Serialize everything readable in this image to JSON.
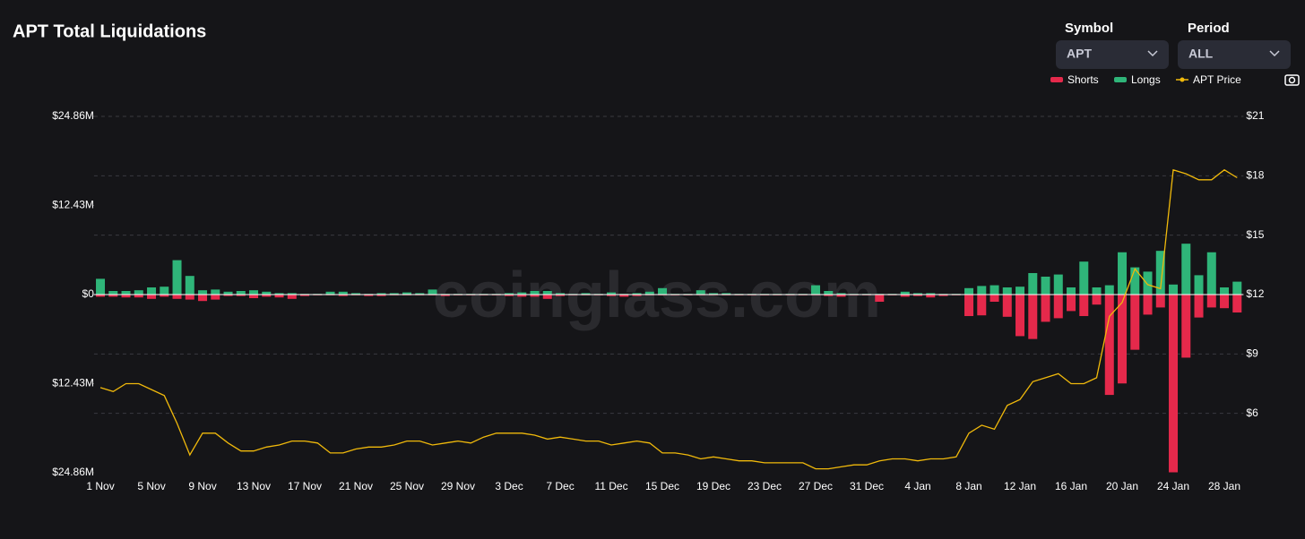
{
  "header": {
    "title": "APT Total Liquidations"
  },
  "controls": {
    "symbol_label": "Symbol",
    "symbol": "APT",
    "period_label": "Period",
    "period": "ALL"
  },
  "chart_data": {
    "type": "bar",
    "watermark": "coinglass.com",
    "categories": [
      "1 Nov",
      null,
      null,
      null,
      "5 Nov",
      null,
      null,
      null,
      "9 Nov",
      null,
      null,
      null,
      "13 Nov",
      null,
      null,
      null,
      "17 Nov",
      null,
      null,
      null,
      "21 Nov",
      null,
      null,
      null,
      "25 Nov",
      null,
      null,
      null,
      "29 Nov",
      null,
      null,
      null,
      "3 Dec",
      null,
      null,
      null,
      "7 Dec",
      null,
      null,
      null,
      "11 Dec",
      null,
      null,
      null,
      "15 Dec",
      null,
      null,
      null,
      "19 Dec",
      null,
      null,
      null,
      "23 Dec",
      null,
      null,
      null,
      "27 Dec",
      null,
      null,
      null,
      "31 Dec",
      null,
      null,
      null,
      "4 Jan",
      null,
      null,
      null,
      "8 Jan",
      null,
      null,
      null,
      "12 Jan",
      null,
      null,
      null,
      "16 Jan",
      null,
      null,
      null,
      "20 Jan",
      null,
      null,
      null,
      "24 Jan",
      null,
      null,
      null,
      "28 Jan",
      null
    ],
    "series": [
      {
        "name": "Shorts",
        "color": "#e5294b",
        "values": [
          -0.3,
          -0.3,
          -0.4,
          -0.4,
          -0.6,
          -0.3,
          -0.6,
          -0.7,
          -0.9,
          -0.7,
          -0.2,
          -0.2,
          -0.5,
          -0.3,
          -0.4,
          -0.6,
          -0.2,
          -0.1,
          -0.1,
          -0.2,
          -0.1,
          -0.2,
          -0.2,
          -0.1,
          -0.1,
          -0.1,
          -0.1,
          -0.2,
          -0.1,
          -0.1,
          -0.1,
          -0.1,
          -0.2,
          -0.3,
          -0.3,
          -0.6,
          -0.2,
          -0.1,
          -0.1,
          -0.1,
          -0.2,
          -0.3,
          -0.2,
          -0.1,
          -0.1,
          -0.1,
          -0.1,
          -0.1,
          -0.1,
          -0.1,
          -0.1,
          -0.1,
          -0.1,
          -0.1,
          -0.1,
          -0.1,
          -0.1,
          -0.2,
          -0.3,
          -0.1,
          -0.1,
          -1.0,
          -0.1,
          -0.3,
          -0.2,
          -0.4,
          -0.2,
          -0.1,
          -3.0,
          -2.9,
          -1.0,
          -3.1,
          -5.8,
          -6.2,
          -3.8,
          -3.3,
          -2.3,
          -3.0,
          -1.4,
          -14.0,
          -12.4,
          -7.7,
          -2.8,
          -1.8,
          -24.8,
          -8.8,
          -3.2,
          -1.8,
          -1.9,
          -2.5
        ]
      },
      {
        "name": "Longs",
        "color": "#2fb579",
        "values": [
          2.2,
          0.5,
          0.5,
          0.6,
          1.0,
          1.1,
          4.8,
          2.6,
          0.6,
          0.7,
          0.4,
          0.5,
          0.6,
          0.4,
          0.2,
          0.2,
          0.1,
          0.1,
          0.4,
          0.4,
          0.2,
          0.1,
          0.2,
          0.2,
          0.3,
          0.2,
          0.7,
          0.1,
          0.1,
          0.1,
          0.1,
          0.1,
          0.2,
          0.3,
          0.5,
          0.5,
          0.2,
          0.1,
          0.2,
          0.1,
          0.3,
          0.1,
          0.2,
          0.4,
          0.9,
          0.1,
          0.1,
          0.6,
          0.2,
          0.2,
          0.1,
          0.1,
          0.1,
          0.1,
          0.1,
          0.1,
          1.3,
          0.5,
          0.2,
          0.1,
          0.1,
          0.1,
          0.1,
          0.4,
          0.2,
          0.2,
          0.1,
          0.1,
          0.9,
          1.2,
          1.3,
          1.0,
          1.1,
          3.0,
          2.5,
          2.8,
          1.0,
          4.6,
          1.0,
          1.3,
          5.9,
          3.8,
          3.2,
          6.1,
          1.4,
          7.1,
          2.7,
          5.9,
          1.0,
          1.8
        ]
      },
      {
        "name": "APT Price",
        "type": "line",
        "axis": "y2",
        "color": "#f0b90b",
        "values": [
          7.3,
          7.1,
          7.5,
          7.5,
          7.2,
          6.9,
          5.5,
          3.9,
          5.0,
          5.0,
          4.5,
          4.1,
          4.1,
          4.3,
          4.4,
          4.6,
          4.6,
          4.5,
          4.0,
          4.0,
          4.2,
          4.3,
          4.3,
          4.4,
          4.6,
          4.6,
          4.4,
          4.5,
          4.6,
          4.5,
          4.8,
          5.0,
          5.0,
          5.0,
          4.9,
          4.7,
          4.8,
          4.7,
          4.6,
          4.6,
          4.4,
          4.5,
          4.6,
          4.5,
          4.0,
          4.0,
          3.9,
          3.7,
          3.8,
          3.7,
          3.6,
          3.6,
          3.5,
          3.5,
          3.5,
          3.5,
          3.2,
          3.2,
          3.3,
          3.4,
          3.4,
          3.6,
          3.7,
          3.7,
          3.6,
          3.7,
          3.7,
          3.8,
          5.0,
          5.4,
          5.2,
          6.4,
          6.7,
          7.6,
          7.8,
          8.0,
          7.5,
          7.5,
          7.8,
          10.9,
          11.6,
          13.3,
          12.5,
          12.3,
          18.3,
          18.1,
          17.8,
          17.8,
          18.3,
          17.9
        ]
      }
    ],
    "ylim": [
      -24.86,
      24.86
    ],
    "yticks": [
      {
        "value": 24.86,
        "label": "$24.86M"
      },
      {
        "value": 12.43,
        "label": "$12.43M"
      },
      {
        "value": 0,
        "label": "$0"
      },
      {
        "value": -12.43,
        "label": "$12.43M"
      },
      {
        "value": -24.86,
        "label": "$24.86M"
      }
    ],
    "y2lim": [
      3,
      21
    ],
    "y2ticks": [
      {
        "value": 21,
        "label": "$21"
      },
      {
        "value": 18,
        "label": "$18"
      },
      {
        "value": 15,
        "label": "$15"
      },
      {
        "value": 12,
        "label": "$12"
      },
      {
        "value": 9,
        "label": "$9"
      },
      {
        "value": 6,
        "label": "$6"
      }
    ],
    "grid": true
  }
}
